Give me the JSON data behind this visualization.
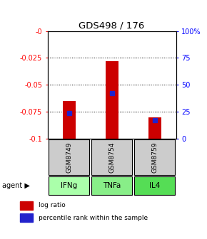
{
  "title": "GDS498 / 176",
  "samples": [
    "GSM8749",
    "GSM8754",
    "GSM8759"
  ],
  "agents": [
    "IFNg",
    "TNFa",
    "IL4"
  ],
  "log_ratios": [
    -0.065,
    -0.028,
    -0.08
  ],
  "percentile_ranks": [
    24,
    42,
    17
  ],
  "y_min": -0.1,
  "y_max": 0.0,
  "y_ticks": [
    0.0,
    -0.025,
    -0.05,
    -0.075,
    -0.1
  ],
  "y_tick_labels": [
    "-0",
    "-0.025",
    "-0.05",
    "-0.075",
    "-0.1"
  ],
  "right_y_labels": [
    "100%",
    "75",
    "50",
    "25",
    "0"
  ],
  "bar_color": "#cc0000",
  "blue_color": "#2222cc",
  "sample_bg": "#cccccc",
  "agent_color_light": "#aaffaa",
  "agent_color_mid": "#88ee88",
  "agent_color_strong": "#55dd55",
  "bar_width": 0.3,
  "legend_red": "log ratio",
  "legend_blue": "percentile rank within the sample"
}
